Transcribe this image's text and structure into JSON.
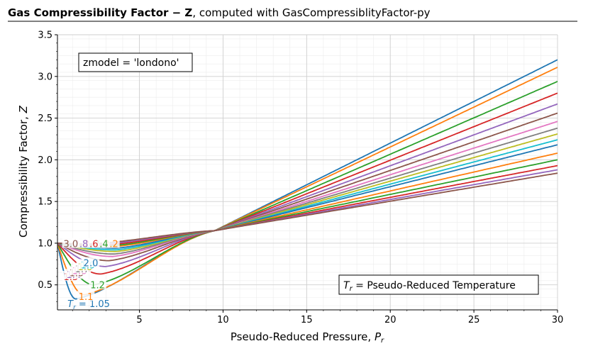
{
  "chart_data": {
    "type": "line",
    "title_bold": "Gas Compressibility Factor − Z",
    "title_rest": ", computed with GasCompressiblityFactor-py",
    "xlabel": "Pseudo-Reduced Pressure, ",
    "xlabel_sym": "P",
    "xlabel_sub": "r",
    "ylabel": "Compressibility Factor, ",
    "ylabel_sym": "Z",
    "xlim": [
      0.1,
      30
    ],
    "ylim": [
      0.2,
      3.5
    ],
    "xticks": [
      5,
      10,
      15,
      20,
      25,
      30
    ],
    "yticks": [
      0.5,
      1.0,
      1.5,
      2.0,
      2.5,
      3.0,
      3.5
    ],
    "xtick_labels": [
      "5",
      "10",
      "15",
      "20",
      "25",
      "30"
    ],
    "ytick_labels": [
      "0.5",
      "1.0",
      "1.5",
      "2.0",
      "2.5",
      "3.0",
      "3.5"
    ],
    "grid": true,
    "annotation_model": "zmodel = 'londono'",
    "annotation_legend_sym": "T",
    "annotation_legend_sub": "r",
    "annotation_legend_text": " = Pseudo-Reduced Temperature",
    "series": [
      {
        "name": "1.05",
        "label": "= 1.05",
        "color": "#1f77b4",
        "z_at_30": 3.2,
        "z_min": 0.33,
        "p_min": 1.2
      },
      {
        "name": "1.1",
        "label": "1.1",
        "color": "#ff7f0e",
        "z_at_30": 3.11,
        "z_min": 0.38,
        "p_min": 1.7
      },
      {
        "name": "1.2",
        "label": "1.2",
        "color": "#2ca02c",
        "z_at_30": 2.94,
        "z_min": 0.5,
        "p_min": 2.3
      },
      {
        "name": "1.3",
        "label": "1.3",
        "color": "#d62728",
        "z_at_30": 2.8,
        "z_min": 0.63,
        "p_min": 2.7
      },
      {
        "name": "1.4",
        "label": "1.4",
        "color": "#9467bd",
        "z_at_30": 2.67,
        "z_min": 0.72,
        "p_min": 3.0
      },
      {
        "name": "1.5",
        "label": "1.5",
        "color": "#8c564b",
        "z_at_30": 2.56,
        "z_min": 0.79,
        "p_min": 3.2
      },
      {
        "name": "1.6",
        "label": "1.6",
        "color": "#e377c2",
        "z_at_30": 2.46,
        "z_min": 0.84,
        "p_min": 3.4
      },
      {
        "name": "1.7",
        "label": "1.7",
        "color": "#7f7f7f",
        "z_at_30": 2.38,
        "z_min": 0.87,
        "p_min": 3.5
      },
      {
        "name": "1.8",
        "label": "1.8",
        "color": "#bcbd22",
        "z_at_30": 2.31,
        "z_min": 0.9,
        "p_min": 3.6
      },
      {
        "name": "1.9",
        "label": "1.9",
        "color": "#17becf",
        "z_at_30": 2.24,
        "z_min": 0.92,
        "p_min": 3.6
      },
      {
        "name": "2.0",
        "label": "2.0",
        "color": "#1f77b4",
        "z_at_30": 2.18,
        "z_min": 0.94,
        "p_min": 3.6
      },
      {
        "name": "2.2",
        "label": "2.2",
        "color": "#ff7f0e",
        "z_at_30": 2.08,
        "z_min": 0.96,
        "p_min": 3.5
      },
      {
        "name": "2.4",
        "label": "2.4",
        "color": "#2ca02c",
        "z_at_30": 2.0,
        "z_min": 0.97,
        "p_min": 3.3
      },
      {
        "name": "2.6",
        "label": "2.6",
        "color": "#d62728",
        "z_at_30": 1.93,
        "z_min": 0.98,
        "p_min": 3.0
      },
      {
        "name": "2.8",
        "label": "2.8",
        "color": "#9467bd",
        "z_at_30": 1.88,
        "z_min": 0.985,
        "p_min": 2.5
      },
      {
        "name": "3.0",
        "label": "3.0",
        "color": "#8c564b",
        "z_at_30": 1.84,
        "z_min": 0.99,
        "p_min": 2.0
      }
    ],
    "visible_curve_labels": [
      "= 1.05",
      "1.1",
      "1.2",
      "1.3",
      "1.4",
      "1.5",
      "1.6",
      "1.7",
      "1.8",
      "1.9",
      "2.0",
      "2.2",
      "2.4",
      "2.6",
      "2.8",
      "3.0"
    ]
  }
}
